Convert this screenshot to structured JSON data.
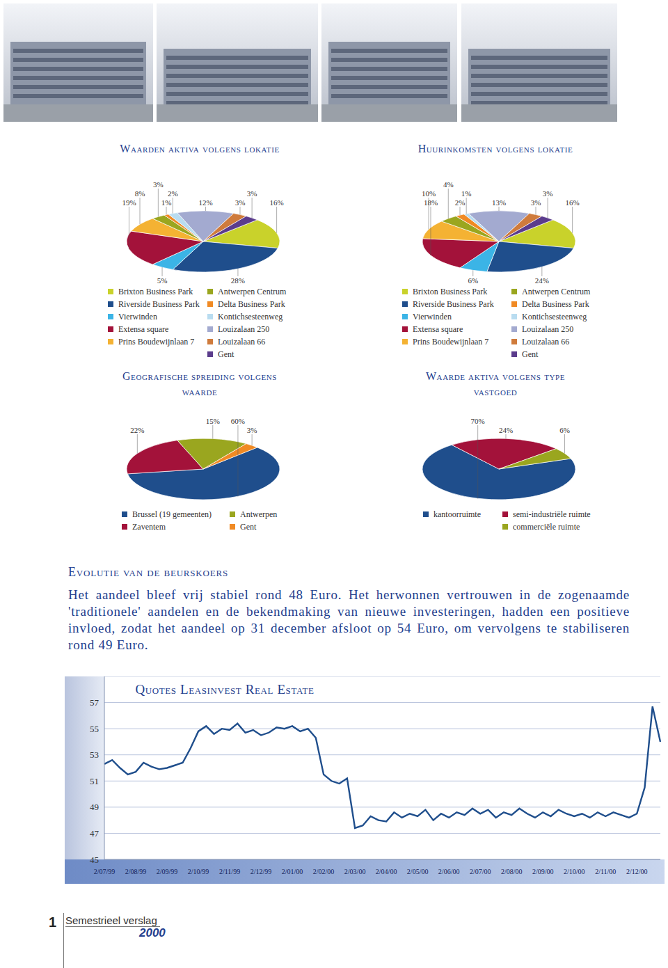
{
  "document": {
    "heading": "Evolutie van de beurskoers",
    "paragraph": "Het aandeel bleef vrij stabiel rond 48 Euro. Het herwonnen vertrouwen in de zogenaamde 'traditionele' aandelen en de bekendmaking van nieuwe investeringen, hadden een positieve invloed, zodat het aandeel op 31 december afsloot op 54 Euro, om vervolgens te stabiliseren rond 49 Euro.",
    "footer": {
      "page": "1",
      "label": "Semestrieel verslag",
      "year": "2000"
    }
  },
  "chart_data": [
    {
      "type": "pie",
      "title": "Waarden aktiva volgens lokatie",
      "categories": [
        "Brixton Business Park",
        "Riverside Business Park",
        "Vierwinden",
        "Extensa square",
        "Prins Boudewijnlaan 7",
        "Antwerpen Centrum",
        "Delta Business Park",
        "Kontichsesteenweg",
        "Louizalaan 250",
        "Louizalaan 66",
        "Gent"
      ],
      "values": [
        16,
        28,
        5,
        19,
        8,
        3,
        1,
        2,
        12,
        3,
        3
      ],
      "value_labels": [
        "16%",
        "28%",
        "5%",
        "19%",
        "8%",
        "3%",
        "1%",
        "2%",
        "12%",
        "3%",
        "3%"
      ],
      "colors": [
        "#c9d22b",
        "#1f4e8c",
        "#3bb4e6",
        "#a3123a",
        "#f4b233",
        "#9aa61f",
        "#f08a24",
        "#b9dcf0",
        "#a3aad0",
        "#cf7b3c",
        "#5b3c8c"
      ],
      "data_labels": true,
      "legend": "bottom"
    },
    {
      "type": "pie",
      "title": "Huurinkomsten volgens lokatie",
      "categories": [
        "Brixton Business Park",
        "Riverside Business Park",
        "Vierwinden",
        "Extensa square",
        "Prins Boudewijnlaan 7",
        "Antwerpen Centrum",
        "Delta Business Park",
        "Kontichsesteenweg",
        "Louizalaan 250",
        "Louizalaan 66",
        "Gent"
      ],
      "values": [
        16,
        24,
        6,
        18,
        10,
        4,
        2,
        1,
        13,
        3,
        3
      ],
      "value_labels": [
        "16%",
        "24%",
        "6%",
        "18%",
        "10%",
        "4%",
        "2%",
        "1%",
        "13%",
        "3%",
        "3%"
      ],
      "colors": [
        "#c9d22b",
        "#1f4e8c",
        "#3bb4e6",
        "#a3123a",
        "#f4b233",
        "#9aa61f",
        "#f08a24",
        "#b9dcf0",
        "#a3aad0",
        "#cf7b3c",
        "#5b3c8c"
      ],
      "data_labels": true,
      "legend": "bottom"
    },
    {
      "type": "pie",
      "title": "Geografische spreiding volgens waarde",
      "categories": [
        "Brussel (19 gemeenten)",
        "Zaventem",
        "Antwerpen",
        "Gent"
      ],
      "values": [
        60,
        22,
        15,
        3
      ],
      "value_labels": [
        "60%",
        "22%",
        "15%",
        "3%"
      ],
      "colors": [
        "#1f4e8c",
        "#a3123a",
        "#9aa61f",
        "#f08a24"
      ],
      "data_labels": true,
      "legend": "bottom"
    },
    {
      "type": "pie",
      "title": "Waarde aktiva volgens type vastgoed",
      "categories": [
        "kantoorruimte",
        "semi-industriële ruimte",
        "commerciële ruimte"
      ],
      "values": [
        70,
        24,
        6
      ],
      "value_labels": [
        "70%",
        "24%",
        "6%"
      ],
      "colors": [
        "#1f4e8c",
        "#a3123a",
        "#9aa61f"
      ],
      "data_labels": true,
      "legend": "bottom"
    },
    {
      "type": "line",
      "title": "Quotes Leasinvest Real Estate",
      "categories": [
        "2/07/99",
        null,
        null,
        null,
        "2/08/99",
        null,
        null,
        null,
        "2/09/99",
        null,
        null,
        null,
        "2/10/99",
        null,
        null,
        null,
        "2/11/99",
        null,
        null,
        null,
        "2/12/99",
        null,
        null,
        null,
        "2/01/00",
        null,
        null,
        null,
        "2/02/00",
        null,
        null,
        null,
        "2/03/00",
        null,
        null,
        null,
        "2/04/00",
        null,
        null,
        null,
        "2/05/00",
        null,
        null,
        null,
        "2/06/00",
        null,
        null,
        null,
        "2/07/00",
        null,
        null,
        null,
        "2/08/00",
        null,
        null,
        null,
        "2/09/00",
        null,
        null,
        null,
        "2/10/00",
        null,
        null,
        null,
        "2/11/00",
        null,
        null,
        null,
        "2/12/00",
        null,
        null,
        null
      ],
      "values": [
        52.3,
        52.6,
        52.0,
        51.5,
        51.7,
        52.4,
        52.1,
        51.9,
        52.0,
        52.2,
        52.4,
        53.5,
        54.8,
        55.2,
        54.6,
        55.0,
        54.9,
        55.4,
        54.7,
        54.9,
        54.5,
        54.7,
        55.1,
        55.0,
        55.2,
        54.8,
        55.0,
        54.3,
        51.5,
        51.0,
        50.8,
        51.2,
        47.4,
        47.6,
        48.3,
        48.0,
        47.9,
        48.6,
        48.2,
        48.5,
        48.3,
        48.8,
        48.0,
        48.5,
        48.2,
        48.6,
        48.4,
        48.9,
        48.5,
        48.8,
        48.2,
        48.6,
        48.4,
        48.9,
        48.5,
        48.2,
        48.6,
        48.3,
        48.8,
        48.5,
        48.3,
        48.5,
        48.2,
        48.6,
        48.3,
        48.6,
        48.4,
        48.2,
        48.5,
        50.5,
        56.7,
        54.0
      ],
      "color": "#1f4e8c",
      "ylim": [
        45,
        59
      ],
      "yticks": [
        45,
        47,
        49,
        51,
        53,
        55,
        57
      ],
      "grid": true
    }
  ]
}
